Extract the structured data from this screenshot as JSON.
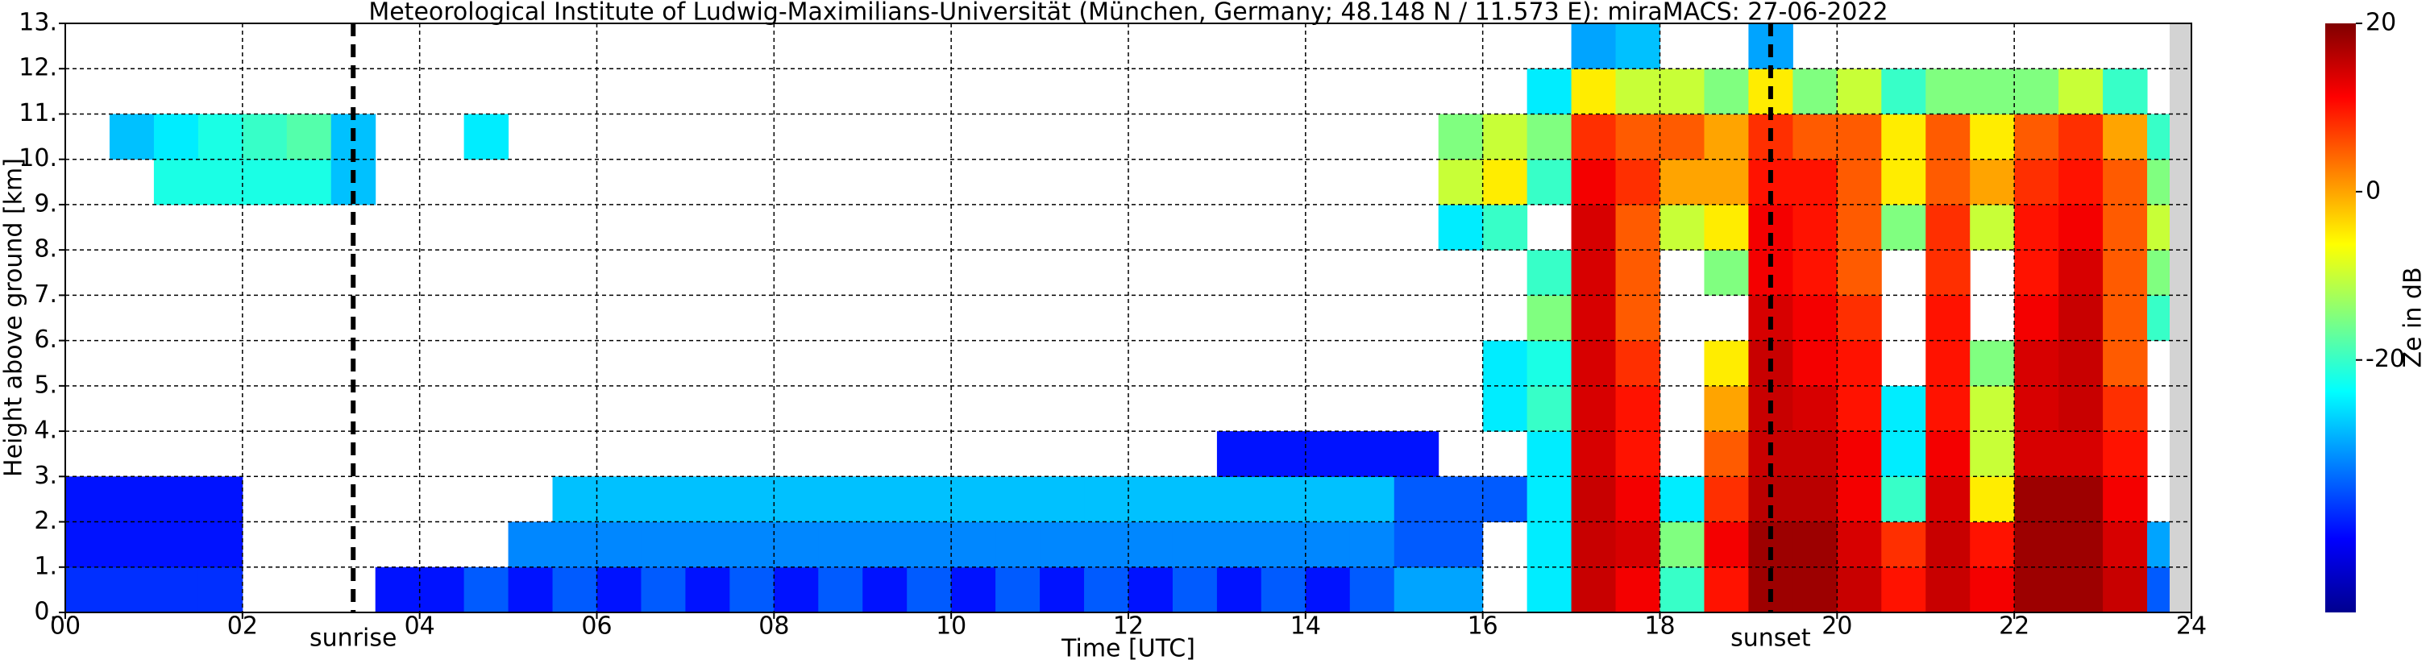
{
  "chart_data": {
    "type": "heatmap",
    "title": "Meteorological Institute of Ludwig-Maximilians-Universität (München, Germany; 48.148 N / 11.573 E):    miraMACS: 27-06-2022",
    "x_label": "Time [UTC]",
    "y_label": "Height above ground [km]",
    "colorbar_label": "Ze in dB",
    "colormap": "jet",
    "grid": true,
    "xlim": [
      0,
      24
    ],
    "xticks": [
      {
        "value": 0,
        "label": "00"
      },
      {
        "value": 2,
        "label": "02"
      },
      {
        "value": 4,
        "label": "04"
      },
      {
        "value": 6,
        "label": "06"
      },
      {
        "value": 8,
        "label": "08"
      },
      {
        "value": 10,
        "label": "10"
      },
      {
        "value": 12,
        "label": "12"
      },
      {
        "value": 14,
        "label": "14"
      },
      {
        "value": 16,
        "label": "16"
      },
      {
        "value": 18,
        "label": "18"
      },
      {
        "value": 20,
        "label": "20"
      },
      {
        "value": 22,
        "label": "22"
      },
      {
        "value": 24,
        "label": "24"
      }
    ],
    "ylim": [
      0,
      13
    ],
    "yticks": [
      {
        "value": 0,
        "label": "0."
      },
      {
        "value": 1,
        "label": "1."
      },
      {
        "value": 2,
        "label": "2."
      },
      {
        "value": 3,
        "label": "3."
      },
      {
        "value": 4,
        "label": "4."
      },
      {
        "value": 5,
        "label": "5."
      },
      {
        "value": 6,
        "label": "6."
      },
      {
        "value": 7,
        "label": "7."
      },
      {
        "value": 8,
        "label": "8."
      },
      {
        "value": 9,
        "label": "9."
      },
      {
        "value": 10,
        "label": "10."
      },
      {
        "value": 11,
        "label": "11."
      },
      {
        "value": 12,
        "label": "12."
      },
      {
        "value": 13,
        "label": "13."
      }
    ],
    "zlim": [
      -50,
      20
    ],
    "zticks": [
      -20,
      0,
      20
    ],
    "annotations": [
      {
        "text": "sunrise",
        "x": 3.25
      },
      {
        "text": "sunset",
        "x": 19.25
      }
    ],
    "x": [
      0,
      0.5,
      1,
      1.5,
      2,
      2.5,
      3,
      3.5,
      4,
      4.5,
      5,
      5.5,
      6,
      6.5,
      7,
      7.5,
      8,
      8.5,
      9,
      9.5,
      10,
      10.5,
      11,
      11.5,
      12,
      12.5,
      13,
      13.5,
      14,
      14.5,
      15,
      15.5,
      16,
      16.5,
      17,
      17.5,
      18,
      18.5,
      19,
      19.5,
      20,
      20.5,
      21,
      21.5,
      22,
      22.5,
      23,
      23.5
    ],
    "y": [
      0,
      1,
      2,
      3,
      4,
      5,
      6,
      7,
      8,
      9,
      10,
      11,
      12
    ],
    "z": [
      [
        -38,
        -38,
        -38,
        -38,
        null,
        null,
        null,
        -40,
        -40,
        -35,
        -40,
        -35,
        -40,
        -35,
        -40,
        -35,
        -40,
        -35,
        -40,
        -35,
        -40,
        -35,
        -40,
        -35,
        -40,
        -35,
        -40,
        -35,
        -40,
        -35,
        -30,
        -30,
        null,
        -25,
        15,
        12,
        -20,
        10,
        18,
        18,
        15,
        10,
        15,
        12,
        18,
        18,
        15,
        -35
      ],
      [
        -40,
        -40,
        -40,
        -40,
        null,
        null,
        null,
        null,
        null,
        null,
        -32,
        -32,
        -32,
        -32,
        -32,
        -32,
        -32,
        -32,
        -32,
        -32,
        -32,
        -32,
        -32,
        -32,
        -32,
        -32,
        -32,
        -32,
        -32,
        -32,
        -35,
        -35,
        null,
        -25,
        15,
        14,
        -15,
        12,
        18,
        18,
        14,
        8,
        15,
        10,
        18,
        18,
        14,
        -30
      ],
      [
        -40,
        -40,
        -40,
        -40,
        null,
        null,
        null,
        null,
        null,
        null,
        null,
        -28,
        -28,
        -28,
        -28,
        -28,
        -28,
        -28,
        -28,
        -28,
        -28,
        -28,
        -28,
        -28,
        -28,
        -28,
        -28,
        -28,
        -28,
        -28,
        -35,
        -35,
        -35,
        -25,
        15,
        12,
        -25,
        8,
        16,
        16,
        12,
        -20,
        14,
        -5,
        18,
        18,
        12,
        null
      ],
      [
        null,
        null,
        null,
        null,
        null,
        null,
        null,
        null,
        null,
        null,
        null,
        null,
        null,
        null,
        null,
        null,
        null,
        null,
        null,
        null,
        null,
        null,
        null,
        null,
        null,
        null,
        -40,
        -40,
        -40,
        -40,
        -40,
        null,
        null,
        -25,
        14,
        10,
        null,
        5,
        15,
        15,
        12,
        -25,
        12,
        -10,
        14,
        14,
        10,
        null
      ],
      [
        null,
        null,
        null,
        null,
        null,
        null,
        null,
        null,
        null,
        null,
        null,
        null,
        null,
        null,
        null,
        null,
        null,
        null,
        null,
        null,
        null,
        null,
        null,
        null,
        null,
        null,
        null,
        null,
        null,
        null,
        null,
        null,
        -25,
        -20,
        14,
        10,
        null,
        0,
        15,
        14,
        10,
        -25,
        10,
        -10,
        14,
        15,
        8,
        null
      ],
      [
        null,
        null,
        null,
        null,
        null,
        null,
        null,
        null,
        null,
        null,
        null,
        null,
        null,
        null,
        null,
        null,
        null,
        null,
        null,
        null,
        null,
        null,
        null,
        null,
        null,
        null,
        null,
        null,
        null,
        null,
        null,
        null,
        -25,
        -22,
        14,
        8,
        null,
        -5,
        15,
        12,
        10,
        null,
        10,
        -15,
        14,
        15,
        5,
        null
      ],
      [
        null,
        null,
        null,
        null,
        null,
        null,
        null,
        null,
        null,
        null,
        null,
        null,
        null,
        null,
        null,
        null,
        null,
        null,
        null,
        null,
        null,
        null,
        null,
        null,
        null,
        null,
        null,
        null,
        null,
        null,
        null,
        null,
        null,
        -15,
        14,
        5,
        null,
        null,
        14,
        12,
        8,
        null,
        10,
        null,
        12,
        15,
        5,
        -20
      ],
      [
        null,
        null,
        null,
        null,
        null,
        null,
        null,
        null,
        null,
        null,
        null,
        null,
        null,
        null,
        null,
        null,
        null,
        null,
        null,
        null,
        null,
        null,
        null,
        null,
        null,
        null,
        null,
        null,
        null,
        null,
        null,
        null,
        null,
        -20,
        14,
        5,
        null,
        -15,
        12,
        10,
        5,
        null,
        8,
        null,
        10,
        14,
        5,
        -15
      ],
      [
        null,
        null,
        null,
        null,
        null,
        null,
        null,
        null,
        null,
        null,
        null,
        null,
        null,
        null,
        null,
        null,
        null,
        null,
        null,
        null,
        null,
        null,
        null,
        null,
        null,
        null,
        null,
        null,
        null,
        null,
        null,
        -25,
        -20,
        null,
        14,
        5,
        -10,
        -5,
        12,
        10,
        5,
        -15,
        8,
        -10,
        10,
        12,
        5,
        -10
      ],
      [
        null,
        null,
        -22,
        -22,
        -22,
        -22,
        -28,
        null,
        null,
        null,
        null,
        null,
        null,
        null,
        null,
        null,
        null,
        null,
        null,
        null,
        null,
        null,
        null,
        null,
        null,
        null,
        null,
        null,
        null,
        null,
        null,
        -10,
        -5,
        -20,
        12,
        8,
        0,
        0,
        10,
        10,
        5,
        -5,
        5,
        0,
        8,
        10,
        5,
        -15
      ],
      [
        null,
        -28,
        -25,
        -22,
        -20,
        -18,
        -28,
        null,
        null,
        -25,
        null,
        null,
        null,
        null,
        null,
        null,
        null,
        null,
        null,
        null,
        null,
        null,
        null,
        null,
        null,
        null,
        null,
        null,
        null,
        null,
        null,
        -15,
        -10,
        -15,
        8,
        5,
        5,
        0,
        8,
        5,
        5,
        -5,
        5,
        -5,
        5,
        8,
        0,
        -20
      ],
      [
        null,
        null,
        null,
        null,
        null,
        null,
        null,
        null,
        null,
        null,
        null,
        null,
        null,
        null,
        null,
        null,
        null,
        null,
        null,
        null,
        null,
        null,
        null,
        null,
        null,
        null,
        null,
        null,
        null,
        null,
        null,
        null,
        null,
        -25,
        -5,
        -10,
        -10,
        -15,
        -5,
        -15,
        -10,
        -20,
        -15,
        -15,
        -15,
        -10,
        -20,
        null
      ],
      [
        null,
        null,
        null,
        null,
        null,
        null,
        null,
        null,
        null,
        null,
        null,
        null,
        null,
        null,
        null,
        null,
        null,
        null,
        null,
        null,
        null,
        null,
        null,
        null,
        null,
        null,
        null,
        null,
        null,
        null,
        null,
        null,
        null,
        null,
        -30,
        -28,
        null,
        null,
        -30,
        null,
        null,
        null,
        null,
        null,
        null,
        null,
        null,
        null
      ]
    ]
  }
}
